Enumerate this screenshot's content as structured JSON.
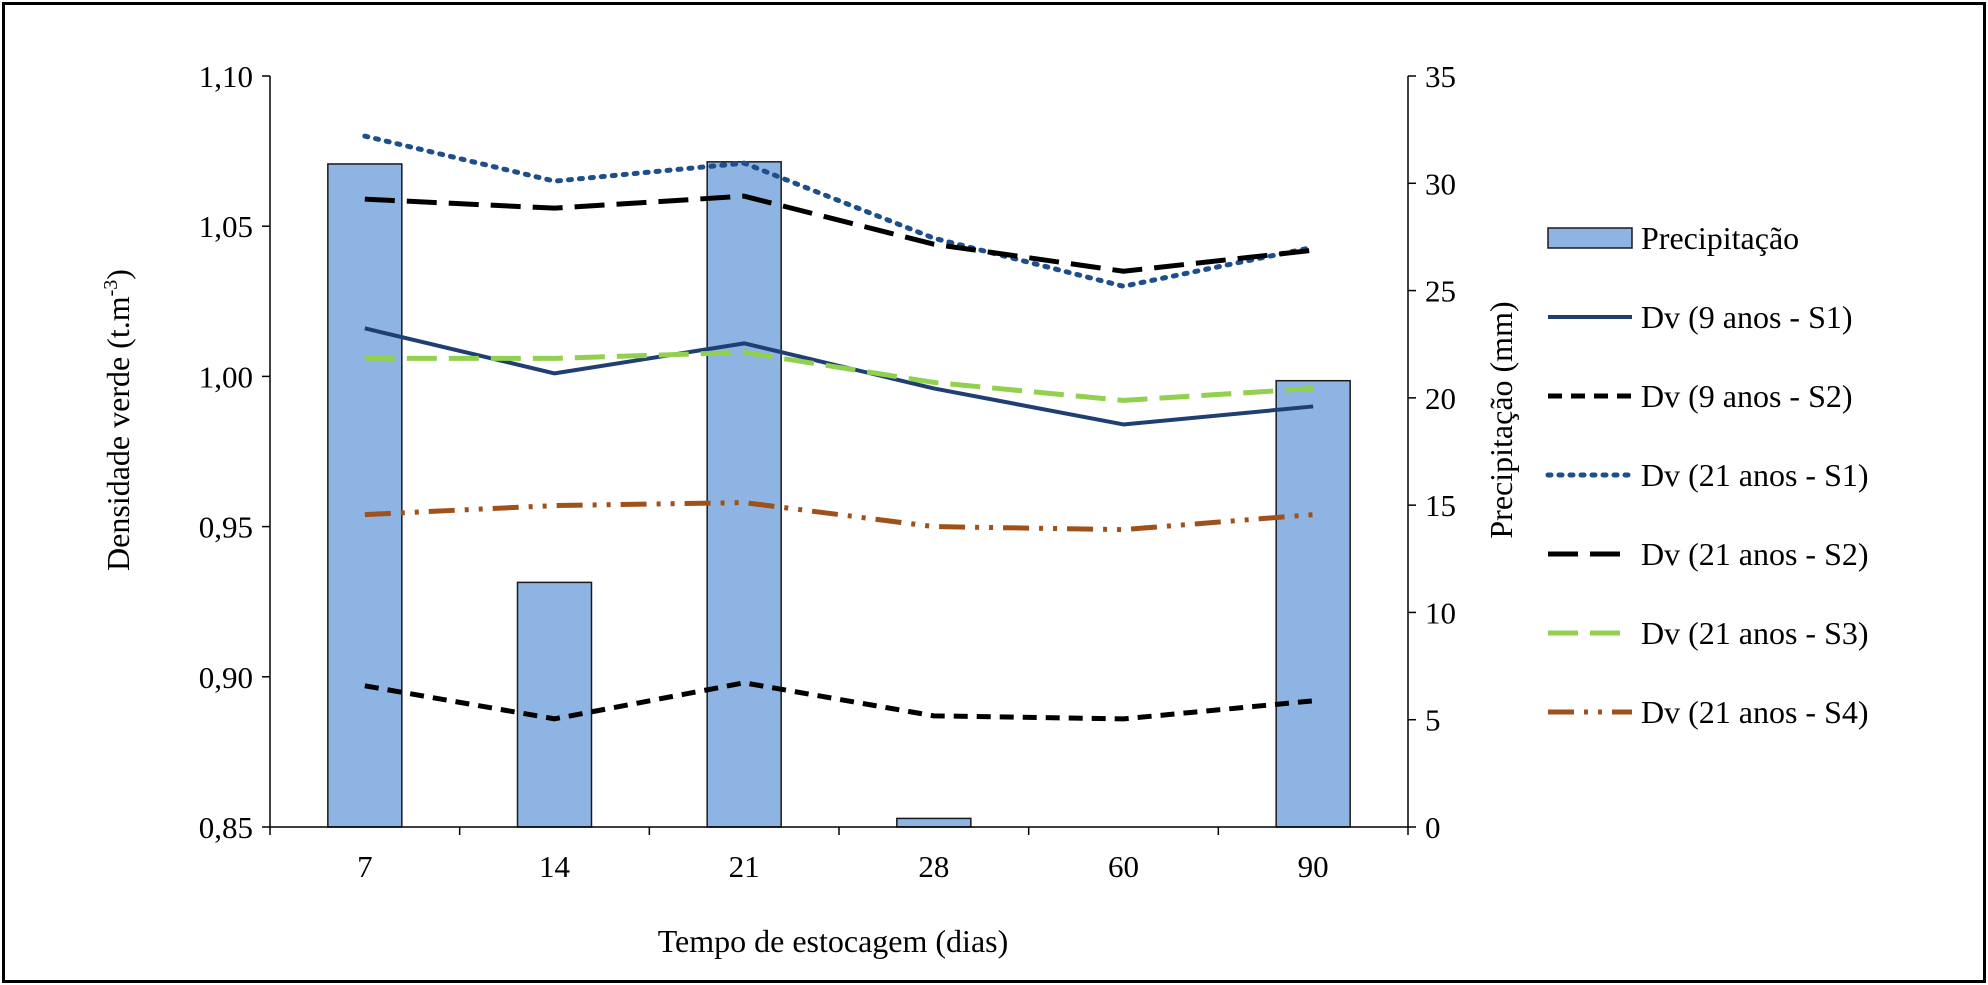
{
  "chart_data": {
    "type": "bar+line",
    "xlabel": "Tempo de estocagem (dias)",
    "ylabel": "Densidade verde  (t.m",
    "ylabel_sup": "-3",
    "ylabel_tail": ")",
    "y2label": "Precipitação (mm)",
    "categories": [
      "7",
      "14",
      "21",
      "28",
      "60",
      "90"
    ],
    "ylim": [
      0.85,
      1.1
    ],
    "yticks": [
      0.85,
      0.9,
      0.95,
      1.0,
      1.05,
      1.1
    ],
    "ytick_labels": [
      "0,85",
      "0,90",
      "0,95",
      "1,00",
      "1,05",
      "1,10"
    ],
    "y2lim": [
      0,
      35
    ],
    "y2ticks": [
      0,
      5,
      10,
      15,
      20,
      25,
      30,
      35
    ],
    "y2tick_labels": [
      "0",
      "5",
      "10",
      "15",
      "20",
      "25",
      "30",
      "35"
    ],
    "bars": {
      "name": "Precipitação",
      "axis": "right",
      "values": [
        30.9,
        11.4,
        31.0,
        0.4,
        0,
        20.8
      ],
      "color": "#8eb4e3"
    },
    "series": [
      {
        "name": "Dv (9 anos - S1)",
        "values": [
          1.016,
          1.001,
          1.011,
          0.996,
          0.984,
          0.99
        ],
        "color": "#1f3e73",
        "dash": "solid"
      },
      {
        "name": "Dv (9 anos - S2)",
        "values": [
          0.897,
          0.886,
          0.898,
          0.887,
          0.886,
          0.892
        ],
        "color": "#000000",
        "dash": "short-dash"
      },
      {
        "name": "Dv (21 anos - S1)",
        "values": [
          1.08,
          1.065,
          1.071,
          1.046,
          1.03,
          1.043
        ],
        "color": "#1f4e8c",
        "dash": "dot"
      },
      {
        "name": "Dv (21 anos - S2)",
        "values": [
          1.059,
          1.056,
          1.06,
          1.044,
          1.035,
          1.042
        ],
        "color": "#000000",
        "dash": "long-dash"
      },
      {
        "name": "Dv (21 anos - S3)",
        "values": [
          1.006,
          1.006,
          1.008,
          0.998,
          0.992,
          0.996
        ],
        "color": "#92d050",
        "dash": "long-dash"
      },
      {
        "name": "Dv (21 anos - S4)",
        "values": [
          0.954,
          0.957,
          0.958,
          0.95,
          0.949,
          0.954
        ],
        "color": "#a0501a",
        "dash": "dash-dot-dot"
      }
    ]
  }
}
